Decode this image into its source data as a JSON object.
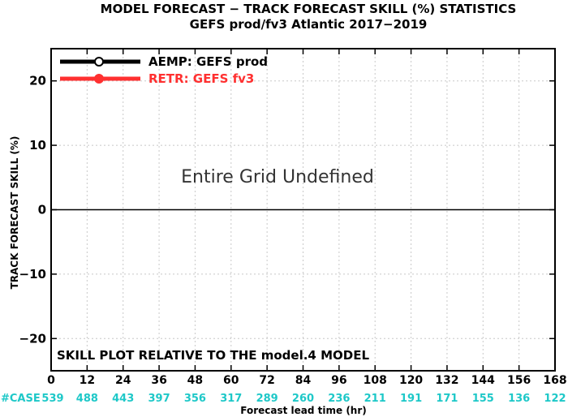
{
  "chart_data": {
    "type": "line",
    "title": "MODEL FORECAST − TRACK FORECAST SKILL (%) STATISTICS",
    "subtitle": "GEFS prod/fv3 Atlantic 2017−2019",
    "xlabel": "Forecast lead time (hr)",
    "ylabel": "TRACK FORECAST SKILL (%)",
    "xlim": [
      0,
      168
    ],
    "ylim": [
      -25,
      25
    ],
    "x_ticks": [
      0,
      12,
      24,
      36,
      48,
      60,
      72,
      84,
      96,
      108,
      120,
      132,
      144,
      156,
      168
    ],
    "y_ticks": [
      20,
      10,
      0,
      -10,
      -20
    ],
    "y_tick_labels": [
      "20",
      "10",
      "0",
      "−10",
      "−20"
    ],
    "grid": true,
    "legend_position": "top-left",
    "series": [
      {
        "name": "AEMP: GEFS prod",
        "color": "#000000",
        "values": []
      },
      {
        "name": "RETR: GEFS fv3",
        "color": "#ff3030",
        "values": []
      }
    ],
    "annotation": "Entire Grid Undefined",
    "reference_note": "SKILL PLOT RELATIVE TO THE model.4 MODEL",
    "case_label": "#CASE",
    "case_counts": [
      539,
      488,
      443,
      397,
      356,
      317,
      289,
      260,
      236,
      211,
      191,
      171,
      155,
      136,
      122
    ],
    "case_color": "#1ec8c8"
  }
}
